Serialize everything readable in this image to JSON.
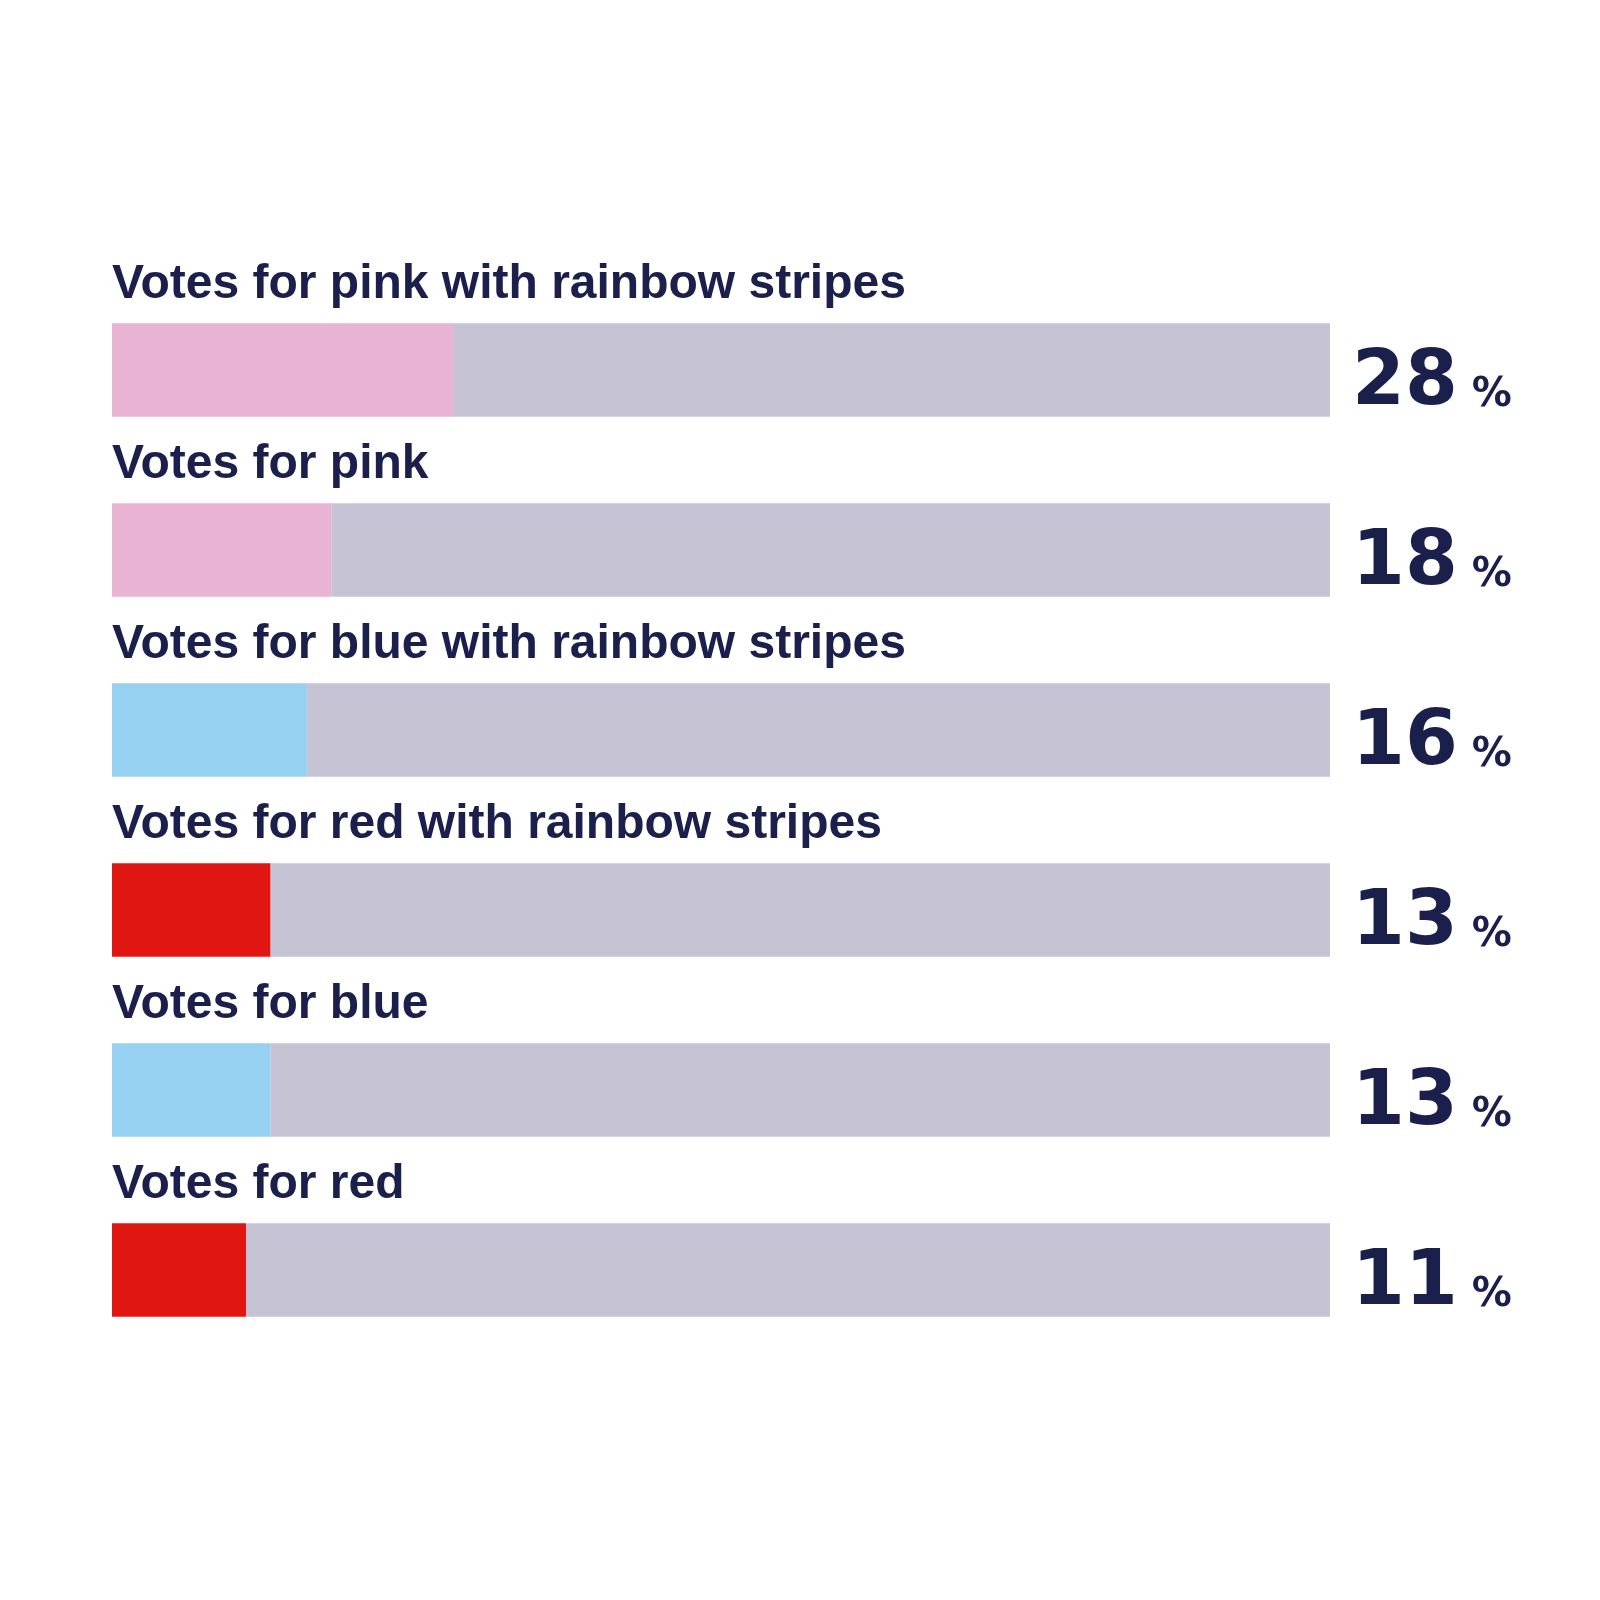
{
  "chart_data": {
    "type": "bar",
    "orientation": "horizontal",
    "stacked": true,
    "categories": [
      "Votes for pink with rainbow stripes",
      "Votes for pink",
      "Votes for blue with rainbow stripes",
      "Votes for red with rainbow stripes",
      "Votes for blue",
      "Votes for red"
    ],
    "series": [
      {
        "colors": [
          "#e9b4d3",
          "#e9b4d3",
          "#97d1f2",
          "#e01612",
          "#97d1f2",
          "#e01612"
        ],
        "values": [
          28,
          18,
          16,
          13,
          13,
          11
        ],
        "value_labels": [
          "28 %",
          "18 %",
          "16 %",
          "13 %",
          "13 %",
          "11 %"
        ]
      },
      {
        "color": "#c6c3d4",
        "values": [
          72,
          82,
          84,
          87,
          87,
          89
        ]
      }
    ],
    "xlim": [
      0,
      100
    ],
    "legend": false
  }
}
